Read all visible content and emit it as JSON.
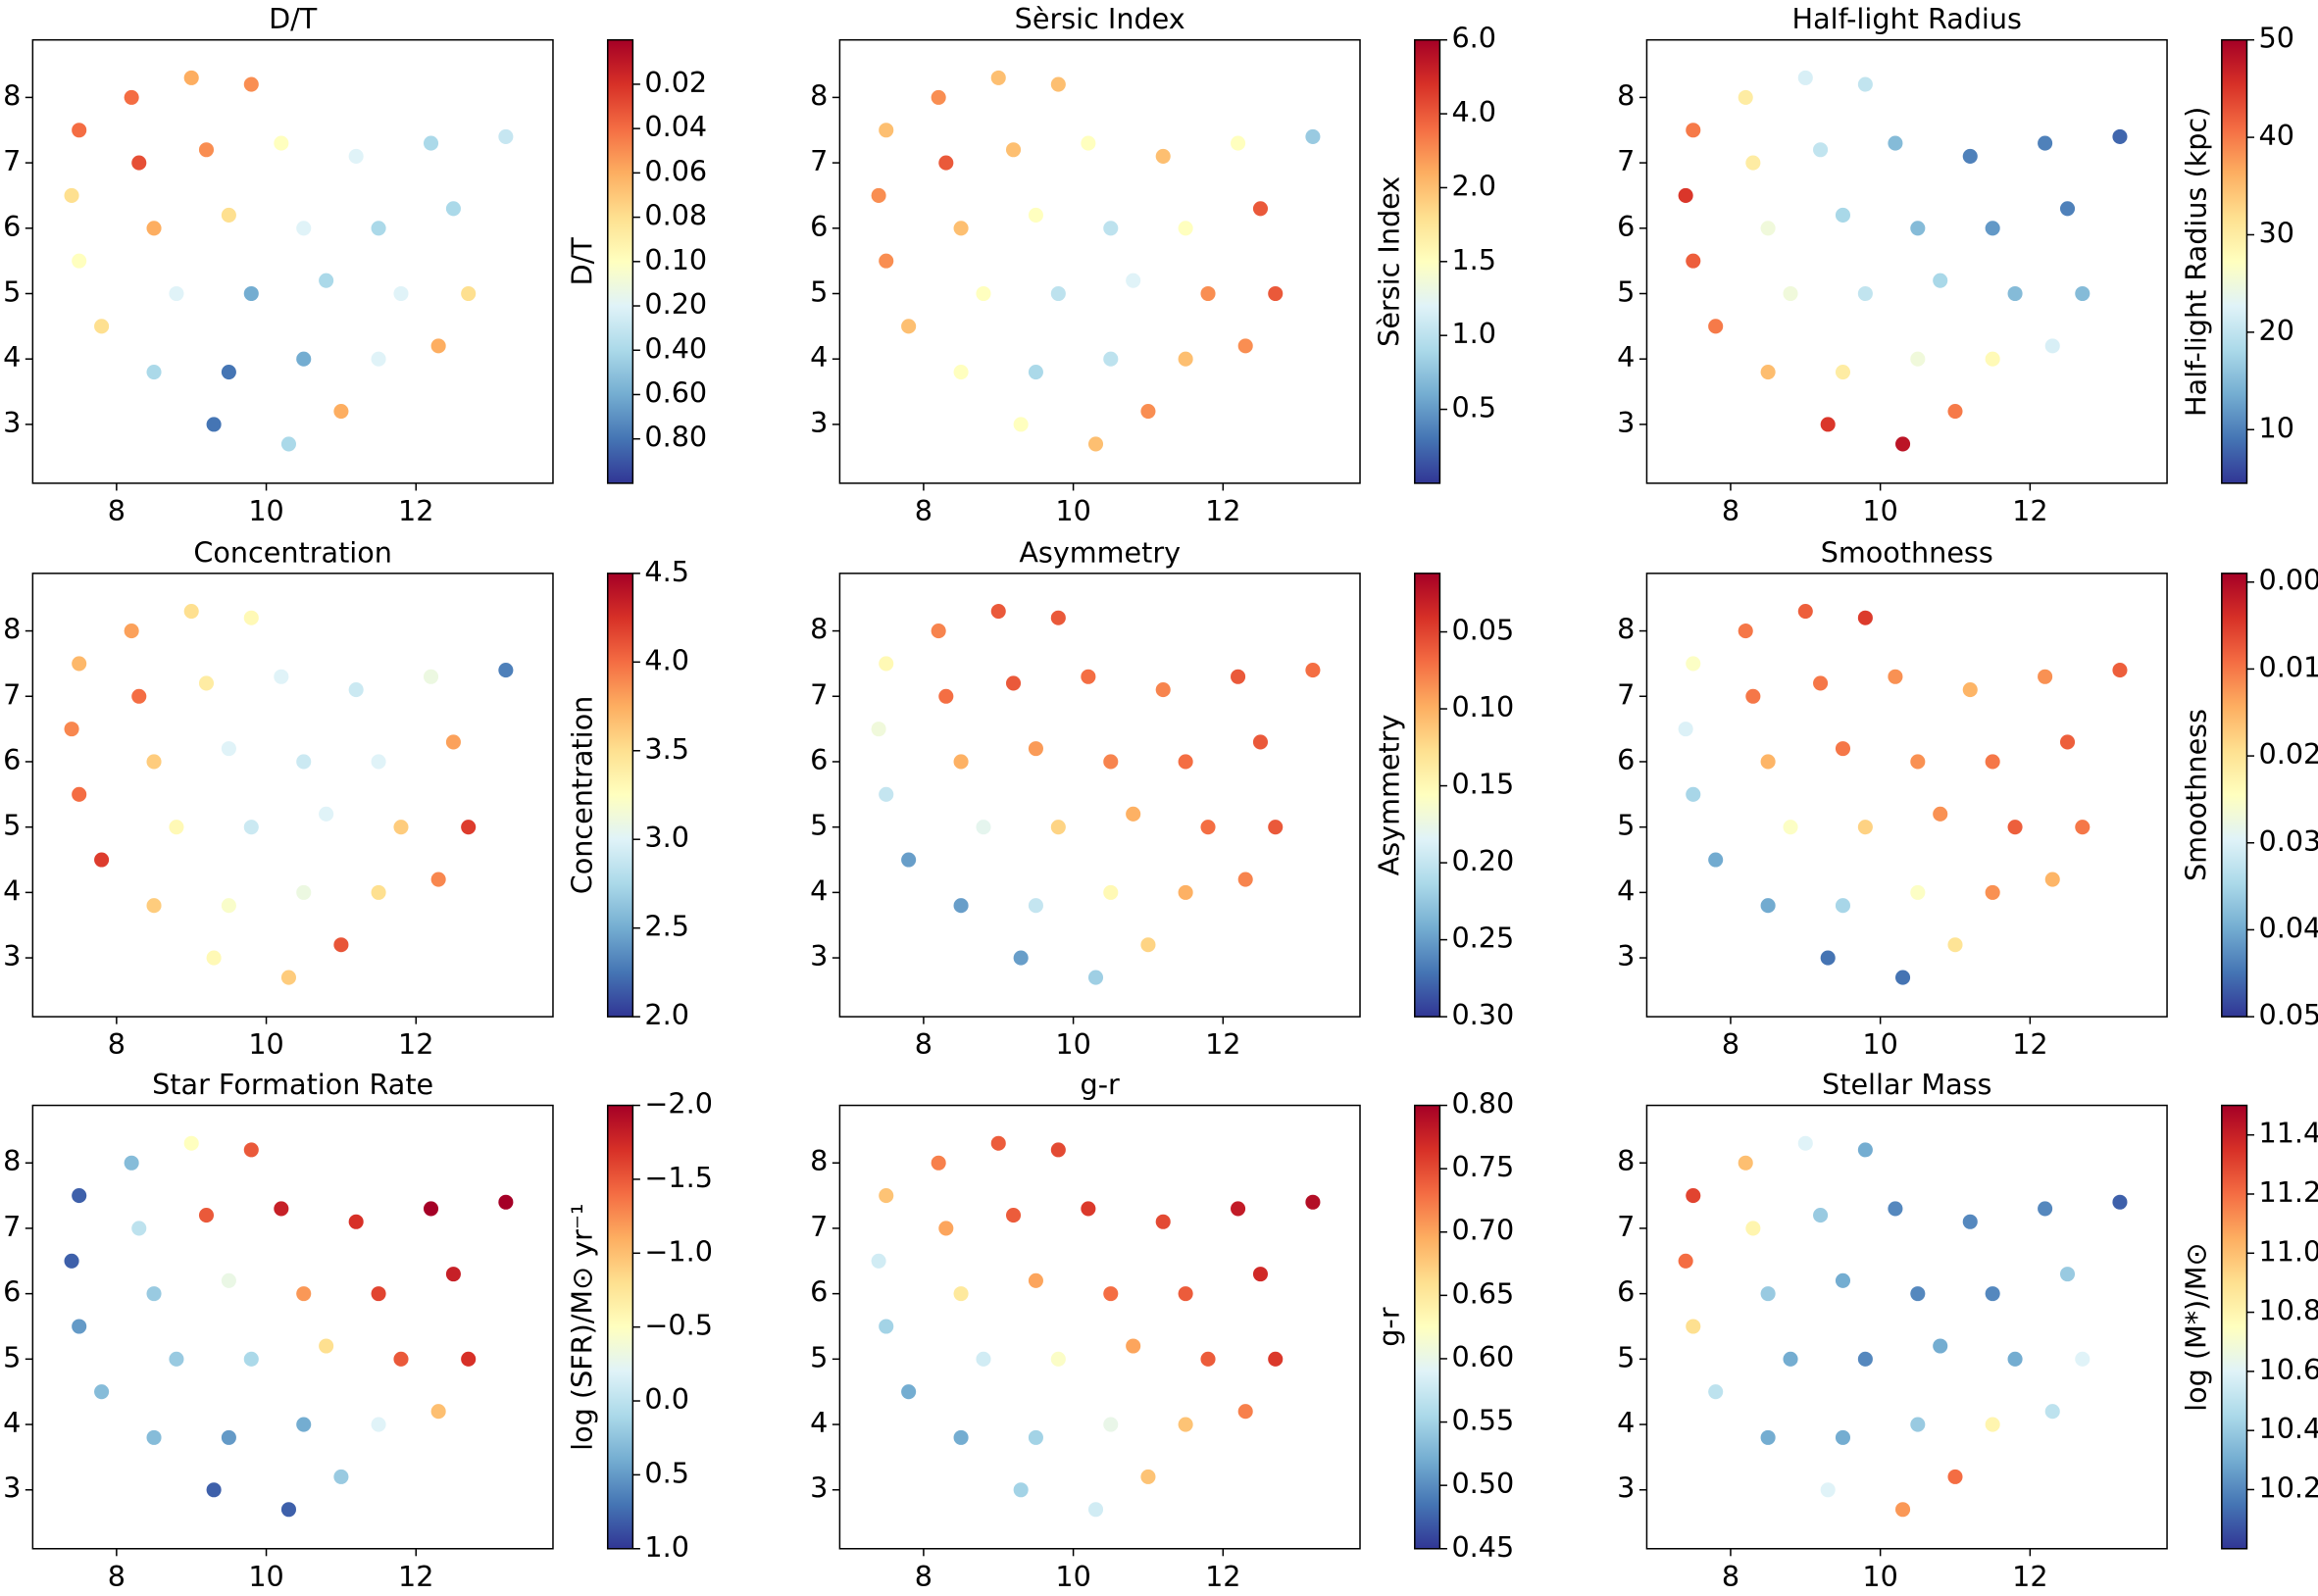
{
  "colormap": [
    "#313695",
    "#4575b4",
    "#74add1",
    "#abd9e9",
    "#e0f3f8",
    "#ffffbf",
    "#fee090",
    "#fdae61",
    "#f46d43",
    "#d73027",
    "#a50026"
  ],
  "chart_data": [
    {
      "type": "scatter",
      "title": "D/T",
      "x": [
        7.5,
        8.2,
        9.0,
        9.8,
        7.4,
        8.3,
        9.2,
        10.2,
        11.2,
        12.2,
        13.2,
        7.5,
        8.5,
        9.5,
        10.5,
        11.5,
        12.5,
        7.8,
        8.8,
        9.8,
        10.8,
        11.8,
        12.7,
        8.5,
        9.5,
        10.5,
        11.5,
        12.3,
        9.3,
        10.3,
        11.0
      ],
      "y": [
        7.5,
        8.0,
        8.3,
        8.2,
        6.5,
        7.0,
        7.2,
        7.3,
        7.1,
        7.3,
        7.4,
        5.5,
        6.0,
        6.2,
        6.0,
        6.0,
        6.3,
        4.5,
        5.0,
        5.0,
        5.2,
        5.0,
        5.0,
        3.8,
        3.8,
        4.0,
        4.0,
        4.2,
        3.0,
        2.7,
        3.2
      ],
      "c": [
        0.04,
        0.04,
        0.06,
        0.05,
        0.08,
        0.03,
        0.05,
        0.1,
        0.2,
        0.4,
        0.3,
        0.1,
        0.06,
        0.08,
        0.2,
        0.4,
        0.4,
        0.08,
        0.2,
        0.6,
        0.4,
        0.2,
        0.08,
        0.4,
        0.8,
        0.6,
        0.2,
        0.06,
        0.8,
        0.4,
        0.06
      ],
      "xlim": [
        6.88,
        13.83
      ],
      "ylim": [
        2.1,
        8.88
      ],
      "xticks": [
        8,
        10,
        12
      ],
      "yticks": [
        3,
        4,
        5,
        6,
        7,
        8
      ],
      "colorbar": {
        "label": "D/T",
        "clim": [
          0.9,
          0.0
        ],
        "norm": "piecewise",
        "ticks": [
          0.02,
          0.04,
          0.06,
          0.08,
          {
            "value": 0.1,
            "label": "0.10"
          },
          {
            "value": 0.2,
            "label": "0.20"
          },
          {
            "value": 0.4,
            "label": "0.40"
          },
          {
            "value": 0.6,
            "label": "0.60"
          },
          {
            "value": 0.8,
            "label": "0.80"
          }
        ]
      }
    },
    {
      "type": "scatter",
      "title": "Sèrsic Index",
      "x": [
        7.5,
        8.2,
        9.0,
        9.8,
        7.4,
        8.3,
        9.2,
        10.2,
        11.2,
        12.2,
        13.2,
        7.5,
        8.5,
        9.5,
        10.5,
        11.5,
        12.5,
        7.8,
        8.8,
        9.8,
        10.8,
        11.8,
        12.7,
        8.5,
        9.5,
        10.5,
        11.5,
        12.3,
        9.3,
        10.3,
        11.0
      ],
      "y": [
        7.5,
        8.0,
        8.3,
        8.2,
        6.5,
        7.0,
        7.2,
        7.3,
        7.1,
        7.3,
        7.4,
        5.5,
        6.0,
        6.2,
        6.0,
        6.0,
        6.3,
        4.5,
        5.0,
        5.0,
        5.2,
        5.0,
        5.0,
        3.8,
        3.8,
        4.0,
        4.0,
        4.2,
        3.0,
        2.7,
        3.2
      ],
      "c": [
        2.0,
        3.0,
        2.0,
        2.0,
        3.0,
        4.0,
        2.0,
        1.5,
        2.0,
        1.5,
        0.8,
        3.0,
        2.0,
        1.5,
        1.0,
        1.5,
        4.0,
        2.0,
        1.5,
        1.0,
        1.2,
        3.0,
        4.0,
        1.5,
        0.9,
        1.0,
        2.0,
        3.0,
        1.5,
        2.0,
        3.0
      ],
      "xlim": [
        6.88,
        13.83
      ],
      "ylim": [
        2.1,
        8.88
      ],
      "xticks": [
        8,
        10,
        12
      ],
      "yticks": [
        3,
        4,
        5,
        6,
        7,
        8
      ],
      "colorbar": {
        "label": "Sèrsic Index",
        "clim": [
          0.27,
          6.0
        ],
        "norm": "piecewise",
        "ticks": [
          0.5,
          {
            "value": 1,
            "label": "1.0"
          },
          1.5,
          {
            "value": 2,
            "label": "2.0"
          },
          {
            "value": 4,
            "label": "4.0"
          },
          {
            "value": 6,
            "label": "6.0"
          }
        ]
      }
    },
    {
      "type": "scatter",
      "title": "Half-light Radius",
      "x": [
        7.5,
        8.2,
        9.0,
        9.8,
        7.4,
        8.3,
        9.2,
        10.2,
        11.2,
        12.2,
        13.2,
        7.5,
        8.5,
        9.5,
        10.5,
        11.5,
        12.5,
        7.8,
        8.8,
        9.8,
        10.8,
        11.8,
        12.7,
        8.5,
        9.5,
        10.5,
        11.5,
        12.3,
        9.3,
        10.3,
        11.0
      ],
      "y": [
        7.5,
        8.0,
        8.3,
        8.2,
        6.5,
        7.0,
        7.2,
        7.3,
        7.1,
        7.3,
        7.4,
        5.5,
        6.0,
        6.2,
        6.0,
        6.0,
        6.3,
        4.5,
        5.0,
        5.0,
        5.2,
        5.0,
        5.0,
        3.8,
        3.8,
        4.0,
        4.0,
        4.2,
        3.0,
        2.7,
        3.2
      ],
      "c": [
        40,
        30,
        22,
        20,
        45,
        30,
        20,
        15,
        10,
        10,
        8,
        42,
        25,
        18,
        15,
        12,
        10,
        40,
        25,
        20,
        18,
        15,
        15,
        35,
        30,
        25,
        28,
        22,
        45,
        48,
        40
      ],
      "xlim": [
        6.88,
        13.83
      ],
      "ylim": [
        2.1,
        8.88
      ],
      "xticks": [
        8,
        10,
        12
      ],
      "yticks": [
        3,
        4,
        5,
        6,
        7,
        8
      ],
      "colorbar": {
        "label": "Half-light Radius (kpc)",
        "clim": [
          4.5,
          50
        ],
        "ticks": [
          10,
          20,
          30,
          40,
          50
        ]
      }
    },
    {
      "type": "scatter",
      "title": "Concentration",
      "x": [
        7.5,
        8.2,
        9.0,
        9.8,
        7.4,
        8.3,
        9.2,
        10.2,
        11.2,
        12.2,
        13.2,
        7.5,
        8.5,
        9.5,
        10.5,
        11.5,
        12.5,
        7.8,
        8.8,
        9.8,
        10.8,
        11.8,
        12.7,
        8.5,
        9.5,
        10.5,
        11.5,
        12.3,
        9.3,
        10.3,
        11.0
      ],
      "y": [
        7.5,
        8.0,
        8.3,
        8.2,
        6.5,
        7.0,
        7.2,
        7.3,
        7.1,
        7.3,
        7.4,
        5.5,
        6.0,
        6.2,
        6.0,
        6.0,
        6.3,
        4.5,
        5.0,
        5.0,
        5.2,
        5.0,
        5.0,
        3.8,
        3.8,
        4.0,
        4.0,
        4.2,
        3.0,
        2.7,
        3.2
      ],
      "c": [
        3.7,
        3.8,
        3.5,
        3.3,
        3.9,
        4.0,
        3.4,
        3.0,
        2.9,
        3.1,
        2.3,
        4.0,
        3.6,
        3.0,
        2.9,
        3.0,
        3.8,
        4.2,
        3.3,
        2.9,
        3.0,
        3.6,
        4.2,
        3.6,
        3.2,
        3.1,
        3.5,
        3.9,
        3.3,
        3.6,
        4.1
      ],
      "xlim": [
        6.88,
        13.83
      ],
      "ylim": [
        2.1,
        8.88
      ],
      "xticks": [
        8,
        10,
        12
      ],
      "yticks": [
        3,
        4,
        5,
        6,
        7,
        8
      ],
      "colorbar": {
        "label": "Concentration",
        "clim": [
          2.0,
          4.5
        ],
        "ticks": [
          {
            "value": 2,
            "label": "2.0"
          },
          2.5,
          {
            "value": 3,
            "label": "3.0"
          },
          3.5,
          {
            "value": 4,
            "label": "4.0"
          },
          4.5
        ]
      }
    },
    {
      "type": "scatter",
      "title": "Asymmetry",
      "x": [
        7.5,
        8.2,
        9.0,
        9.8,
        7.4,
        8.3,
        9.2,
        10.2,
        11.2,
        12.2,
        13.2,
        7.5,
        8.5,
        9.5,
        10.5,
        11.5,
        12.5,
        7.8,
        8.8,
        9.8,
        10.8,
        11.8,
        12.7,
        8.5,
        9.5,
        10.5,
        11.5,
        12.3,
        9.3,
        10.3,
        11.0
      ],
      "y": [
        7.5,
        8.0,
        8.3,
        8.2,
        6.5,
        7.0,
        7.2,
        7.3,
        7.1,
        7.3,
        7.4,
        5.5,
        6.0,
        6.2,
        6.0,
        6.0,
        6.3,
        4.5,
        5.0,
        5.0,
        5.2,
        5.0,
        5.0,
        3.8,
        3.8,
        4.0,
        4.0,
        4.2,
        3.0,
        2.7,
        3.2
      ],
      "c": [
        0.15,
        0.08,
        0.06,
        0.06,
        0.17,
        0.07,
        0.06,
        0.07,
        0.08,
        0.06,
        0.07,
        0.2,
        0.1,
        0.09,
        0.08,
        0.07,
        0.06,
        0.25,
        0.18,
        0.12,
        0.1,
        0.07,
        0.06,
        0.25,
        0.2,
        0.15,
        0.1,
        0.08,
        0.25,
        0.22,
        0.12
      ],
      "xlim": [
        6.88,
        13.83
      ],
      "ylim": [
        2.1,
        8.88
      ],
      "xticks": [
        8,
        10,
        12
      ],
      "yticks": [
        3,
        4,
        5,
        6,
        7,
        8
      ],
      "colorbar": {
        "label": "Asymmetry",
        "clim": [
          0.3,
          0.012
        ],
        "ticks": [
          0.05,
          {
            "value": 0.1,
            "label": "0.10"
          },
          0.15,
          {
            "value": 0.2,
            "label": "0.20"
          },
          0.25,
          {
            "value": 0.3,
            "label": "0.30"
          }
        ]
      }
    },
    {
      "type": "scatter",
      "title": "Smoothness",
      "x": [
        7.5,
        8.2,
        9.0,
        9.8,
        7.4,
        8.3,
        9.2,
        10.2,
        11.2,
        12.2,
        13.2,
        7.5,
        8.5,
        9.5,
        10.5,
        11.5,
        12.5,
        7.8,
        8.8,
        9.8,
        10.8,
        11.8,
        12.7,
        8.5,
        9.5,
        10.5,
        11.5,
        12.3,
        9.3,
        10.3,
        11.0
      ],
      "y": [
        7.5,
        8.0,
        8.3,
        8.2,
        6.5,
        7.0,
        7.2,
        7.3,
        7.1,
        7.3,
        7.4,
        5.5,
        6.0,
        6.2,
        6.0,
        6.0,
        6.3,
        4.5,
        5.0,
        5.0,
        5.2,
        5.0,
        5.0,
        3.8,
        3.8,
        4.0,
        4.0,
        4.2,
        3.0,
        2.7,
        3.2
      ],
      "c": [
        0.025,
        0.01,
        0.008,
        0.005,
        0.03,
        0.01,
        0.01,
        0.012,
        0.015,
        0.012,
        0.008,
        0.035,
        0.015,
        0.01,
        0.012,
        0.01,
        0.008,
        0.04,
        0.025,
        0.018,
        0.012,
        0.008,
        0.01,
        0.04,
        0.035,
        0.025,
        0.012,
        0.015,
        0.045,
        0.045,
        0.02
      ],
      "xlim": [
        6.88,
        13.83
      ],
      "ylim": [
        2.1,
        8.88
      ],
      "xticks": [
        8,
        10,
        12
      ],
      "yticks": [
        3,
        4,
        5,
        6,
        7,
        8
      ],
      "colorbar": {
        "label": "Smoothness",
        "clim": [
          0.05,
          -0.001
        ],
        "ticks": [
          {
            "value": 0,
            "label": "0.00"
          },
          0.01,
          0.02,
          0.03,
          0.04,
          0.05
        ]
      }
    },
    {
      "type": "scatter",
      "title": "Star Formation Rate",
      "x": [
        7.5,
        8.2,
        9.0,
        9.8,
        7.4,
        8.3,
        9.2,
        10.2,
        11.2,
        12.2,
        13.2,
        7.5,
        8.5,
        9.5,
        10.5,
        11.5,
        12.5,
        7.8,
        8.8,
        9.8,
        10.8,
        11.8,
        12.7,
        8.5,
        9.5,
        10.5,
        11.5,
        12.3,
        9.3,
        10.3,
        11.0
      ],
      "y": [
        7.5,
        8.0,
        8.3,
        8.2,
        6.5,
        7.0,
        7.2,
        7.3,
        7.1,
        7.3,
        7.4,
        5.5,
        6.0,
        6.2,
        6.0,
        6.0,
        6.3,
        4.5,
        5.0,
        5.0,
        5.2,
        5.0,
        5.0,
        3.8,
        3.8,
        4.0,
        4.0,
        4.2,
        3.0,
        2.7,
        3.2
      ],
      "c": [
        0.8,
        0.3,
        -0.5,
        -1.5,
        0.8,
        0.0,
        -1.5,
        -1.8,
        -1.7,
        -2.0,
        -2.0,
        0.5,
        0.2,
        -0.3,
        -1.2,
        -1.6,
        -1.8,
        0.3,
        0.2,
        0.1,
        -0.8,
        -1.5,
        -1.7,
        0.3,
        0.5,
        0.4,
        -0.2,
        -1.0,
        0.8,
        0.8,
        0.2
      ],
      "xlim": [
        6.88,
        13.83
      ],
      "ylim": [
        2.1,
        8.88
      ],
      "xticks": [
        8,
        10,
        12
      ],
      "yticks": [
        3,
        4,
        5,
        6,
        7,
        8
      ],
      "colorbar": {
        "label": "log (SFR)/M⊙ yr⁻¹",
        "clim": [
          1.0,
          -2.0
        ],
        "ticks": [
          {
            "value": -2,
            "label": "−2.0"
          },
          {
            "value": -1.5,
            "label": "−1.5"
          },
          {
            "value": -1,
            "label": "−1.0"
          },
          {
            "value": -0.5,
            "label": "−0.5"
          },
          {
            "value": 0,
            "label": "0.0"
          },
          0.5,
          {
            "value": 1,
            "label": "1.0"
          }
        ]
      }
    },
    {
      "type": "scatter",
      "title": "g-r",
      "x": [
        7.5,
        8.2,
        9.0,
        9.8,
        7.4,
        8.3,
        9.2,
        10.2,
        11.2,
        12.2,
        13.2,
        7.5,
        8.5,
        9.5,
        10.5,
        11.5,
        12.5,
        7.8,
        8.8,
        9.8,
        10.8,
        11.8,
        12.7,
        8.5,
        9.5,
        10.5,
        11.5,
        12.3,
        9.3,
        10.3,
        11.0
      ],
      "y": [
        7.5,
        8.0,
        8.3,
        8.2,
        6.5,
        7.0,
        7.2,
        7.3,
        7.1,
        7.3,
        7.4,
        5.5,
        6.0,
        6.2,
        6.0,
        6.0,
        6.3,
        4.5,
        5.0,
        5.0,
        5.2,
        5.0,
        5.0,
        3.8,
        3.8,
        4.0,
        4.0,
        4.2,
        3.0,
        2.7,
        3.2
      ],
      "c": [
        0.68,
        0.72,
        0.74,
        0.75,
        0.58,
        0.7,
        0.74,
        0.76,
        0.75,
        0.78,
        0.79,
        0.55,
        0.65,
        0.7,
        0.73,
        0.74,
        0.77,
        0.52,
        0.58,
        0.62,
        0.7,
        0.74,
        0.76,
        0.52,
        0.55,
        0.6,
        0.68,
        0.72,
        0.55,
        0.58,
        0.68
      ],
      "xlim": [
        6.88,
        13.83
      ],
      "ylim": [
        2.1,
        8.88
      ],
      "xticks": [
        8,
        10,
        12
      ],
      "yticks": [
        3,
        4,
        5,
        6,
        7,
        8
      ],
      "colorbar": {
        "label": "g-r",
        "clim": [
          0.45,
          0.8
        ],
        "ticks": [
          0.45,
          {
            "value": 0.5,
            "label": "0.50"
          },
          0.55,
          {
            "value": 0.6,
            "label": "0.60"
          },
          0.65,
          {
            "value": 0.7,
            "label": "0.70"
          },
          0.75,
          {
            "value": 0.8,
            "label": "0.80"
          }
        ]
      }
    },
    {
      "type": "scatter",
      "title": "Stellar Mass",
      "x": [
        7.5,
        8.2,
        9.0,
        9.8,
        7.4,
        8.3,
        9.2,
        10.2,
        11.2,
        12.2,
        13.2,
        7.5,
        8.5,
        9.5,
        10.5,
        11.5,
        12.5,
        7.8,
        8.8,
        9.8,
        10.8,
        11.8,
        12.7,
        8.5,
        9.5,
        10.5,
        11.5,
        12.3,
        9.3,
        10.3,
        11.0
      ],
      "y": [
        7.5,
        8.0,
        8.3,
        8.2,
        6.5,
        7.0,
        7.2,
        7.3,
        7.1,
        7.3,
        7.4,
        5.5,
        6.0,
        6.2,
        6.0,
        6.0,
        6.3,
        4.5,
        5.0,
        5.0,
        5.2,
        5.0,
        5.0,
        3.8,
        3.8,
        4.0,
        4.0,
        4.2,
        3.0,
        2.7,
        3.2
      ],
      "c": [
        11.3,
        11.0,
        10.6,
        10.3,
        11.2,
        10.8,
        10.4,
        10.2,
        10.2,
        10.2,
        10.1,
        10.9,
        10.4,
        10.3,
        10.2,
        10.2,
        10.4,
        10.5,
        10.3,
        10.2,
        10.3,
        10.3,
        10.6,
        10.3,
        10.3,
        10.4,
        10.8,
        10.5,
        10.6,
        11.1,
        11.2
      ],
      "xlim": [
        6.88,
        13.83
      ],
      "ylim": [
        2.1,
        8.88
      ],
      "xticks": [
        8,
        10,
        12
      ],
      "yticks": [
        3,
        4,
        5,
        6,
        7,
        8
      ],
      "colorbar": {
        "label": "log (M*)/M⊙",
        "clim": [
          10.0,
          11.5
        ],
        "ticks": [
          10.2,
          10.4,
          10.6,
          10.8,
          {
            "value": 11,
            "label": "11.0"
          },
          11.2,
          11.4
        ]
      }
    }
  ]
}
